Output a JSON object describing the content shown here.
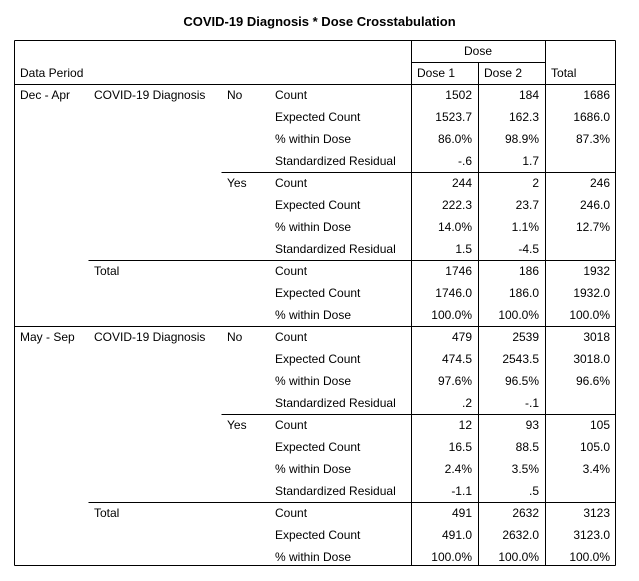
{
  "title": "COVID-19 Diagnosis * Dose Crosstabulation",
  "header": {
    "dose": "Dose",
    "data_period": "Data Period",
    "dose1": "Dose 1",
    "dose2": "Dose 2",
    "total": "Total"
  },
  "labels": {
    "diag": "COVID-19 Diagnosis",
    "no": "No",
    "yes": "Yes",
    "total": "Total",
    "count": "Count",
    "expected": "Expected Count",
    "within": "% within Dose",
    "resid": "Standardized Residual"
  },
  "periods": [
    {
      "label": "Dec - Apr",
      "no": {
        "count": [
          "1502",
          "184",
          "1686"
        ],
        "expected": [
          "1523.7",
          "162.3",
          "1686.0"
        ],
        "within": [
          "86.0%",
          "98.9%",
          "87.3%"
        ],
        "resid": [
          "-.6",
          "1.7",
          ""
        ]
      },
      "yes": {
        "count": [
          "244",
          "2",
          "246"
        ],
        "expected": [
          "222.3",
          "23.7",
          "246.0"
        ],
        "within": [
          "14.0%",
          "1.1%",
          "12.7%"
        ],
        "resid": [
          "1.5",
          "-4.5",
          ""
        ]
      },
      "total": {
        "count": [
          "1746",
          "186",
          "1932"
        ],
        "expected": [
          "1746.0",
          "186.0",
          "1932.0"
        ],
        "within": [
          "100.0%",
          "100.0%",
          "100.0%"
        ]
      }
    },
    {
      "label": "May - Sep",
      "no": {
        "count": [
          "479",
          "2539",
          "3018"
        ],
        "expected": [
          "474.5",
          "2543.5",
          "3018.0"
        ],
        "within": [
          "97.6%",
          "96.5%",
          "96.6%"
        ],
        "resid": [
          ".2",
          "-.1",
          ""
        ]
      },
      "yes": {
        "count": [
          "12",
          "93",
          "105"
        ],
        "expected": [
          "16.5",
          "88.5",
          "105.0"
        ],
        "within": [
          "2.4%",
          "3.5%",
          "3.4%"
        ],
        "resid": [
          "-1.1",
          ".5",
          ""
        ]
      },
      "total": {
        "count": [
          "491",
          "2632",
          "3123"
        ],
        "expected": [
          "491.0",
          "2632.0",
          "3123.0"
        ],
        "within": [
          "100.0%",
          "100.0%",
          "100.0%"
        ]
      }
    }
  ],
  "colors": {
    "highlight": "#ffff33",
    "border": "#000000"
  }
}
